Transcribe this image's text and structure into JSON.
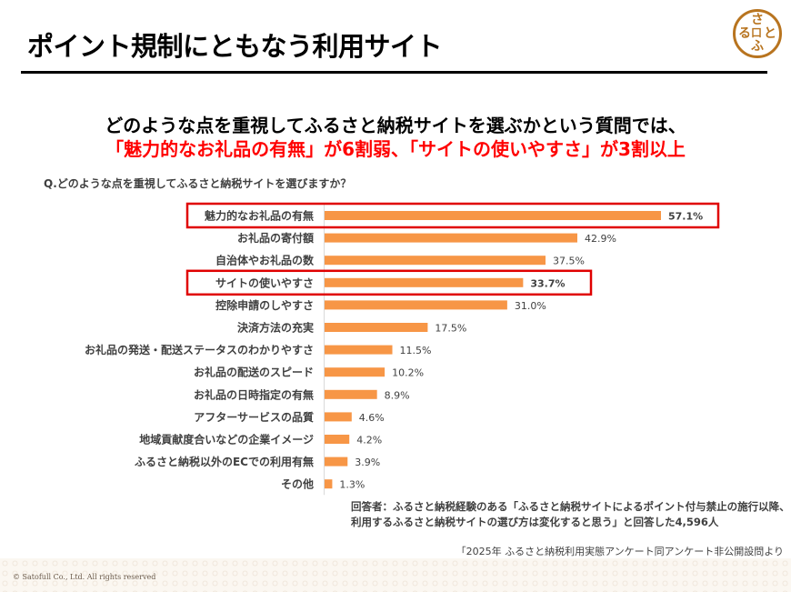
{
  "header": {
    "title": "ポイント規制にともなう利用サイト",
    "logo_chars": [
      "さ",
      "る",
      "口",
      "と",
      "ふ"
    ]
  },
  "headline": {
    "line1": "どのような点を重視してふるさと納税サイトを選ぶかという質問では、",
    "line2": "「魅力的なお礼品の有無」が6割弱、「サイトの使いやすさ」が3割以上"
  },
  "question": "Q.どのような点を重視してふるさと納税サイトを選びますか？",
  "chart_data": {
    "type": "bar",
    "orientation": "horizontal",
    "title": "Q.どのような点を重視してふるさと納税サイトを選びますか？",
    "xlabel": "",
    "ylabel": "",
    "unit": "%",
    "xlim": [
      0,
      60
    ],
    "grid": false,
    "bar_color": "#f79646",
    "highlight_color": "#e00000",
    "categories": [
      "魅力的なお礼品の有無",
      "お礼品の寄付額",
      "自治体やお礼品の数",
      "サイトの使いやすさ",
      "控除申請のしやすさ",
      "決済方法の充実",
      "お礼品の発送・配送ステータスのわかりやすさ",
      "お礼品の配送のスピード",
      "お礼品の日時指定の有無",
      "アフターサービスの品質",
      "地域貢献度合いなどの企業イメージ",
      "ふるさと納税以外のECでの利用有無",
      "その他"
    ],
    "values": [
      57.1,
      42.9,
      37.5,
      33.7,
      31.0,
      17.5,
      11.5,
      10.2,
      8.9,
      4.6,
      4.2,
      3.9,
      1.3
    ],
    "value_labels": [
      "57.1%",
      "42.9%",
      "37.5%",
      "33.7%",
      "31.0%",
      "17.5%",
      "11.5%",
      "10.2%",
      "8.9%",
      "4.6%",
      "4.2%",
      "3.9%",
      "1.3%"
    ],
    "highlighted": [
      0,
      3
    ]
  },
  "respondent": {
    "line1": "回答者：ふるさと納税経験のある「ふるさと納税サイトによるポイント付与禁止の施行以降、",
    "line2": "利用するふるさと納税サイトの選び方は変化すると思う」と回答した4,596人"
  },
  "source": "「2025年 ふるさと納税利用実態アンケート同アンケート非公開設問より",
  "footer": {
    "copyright": "© Satofull Co., Ltd. All rights reserved"
  }
}
